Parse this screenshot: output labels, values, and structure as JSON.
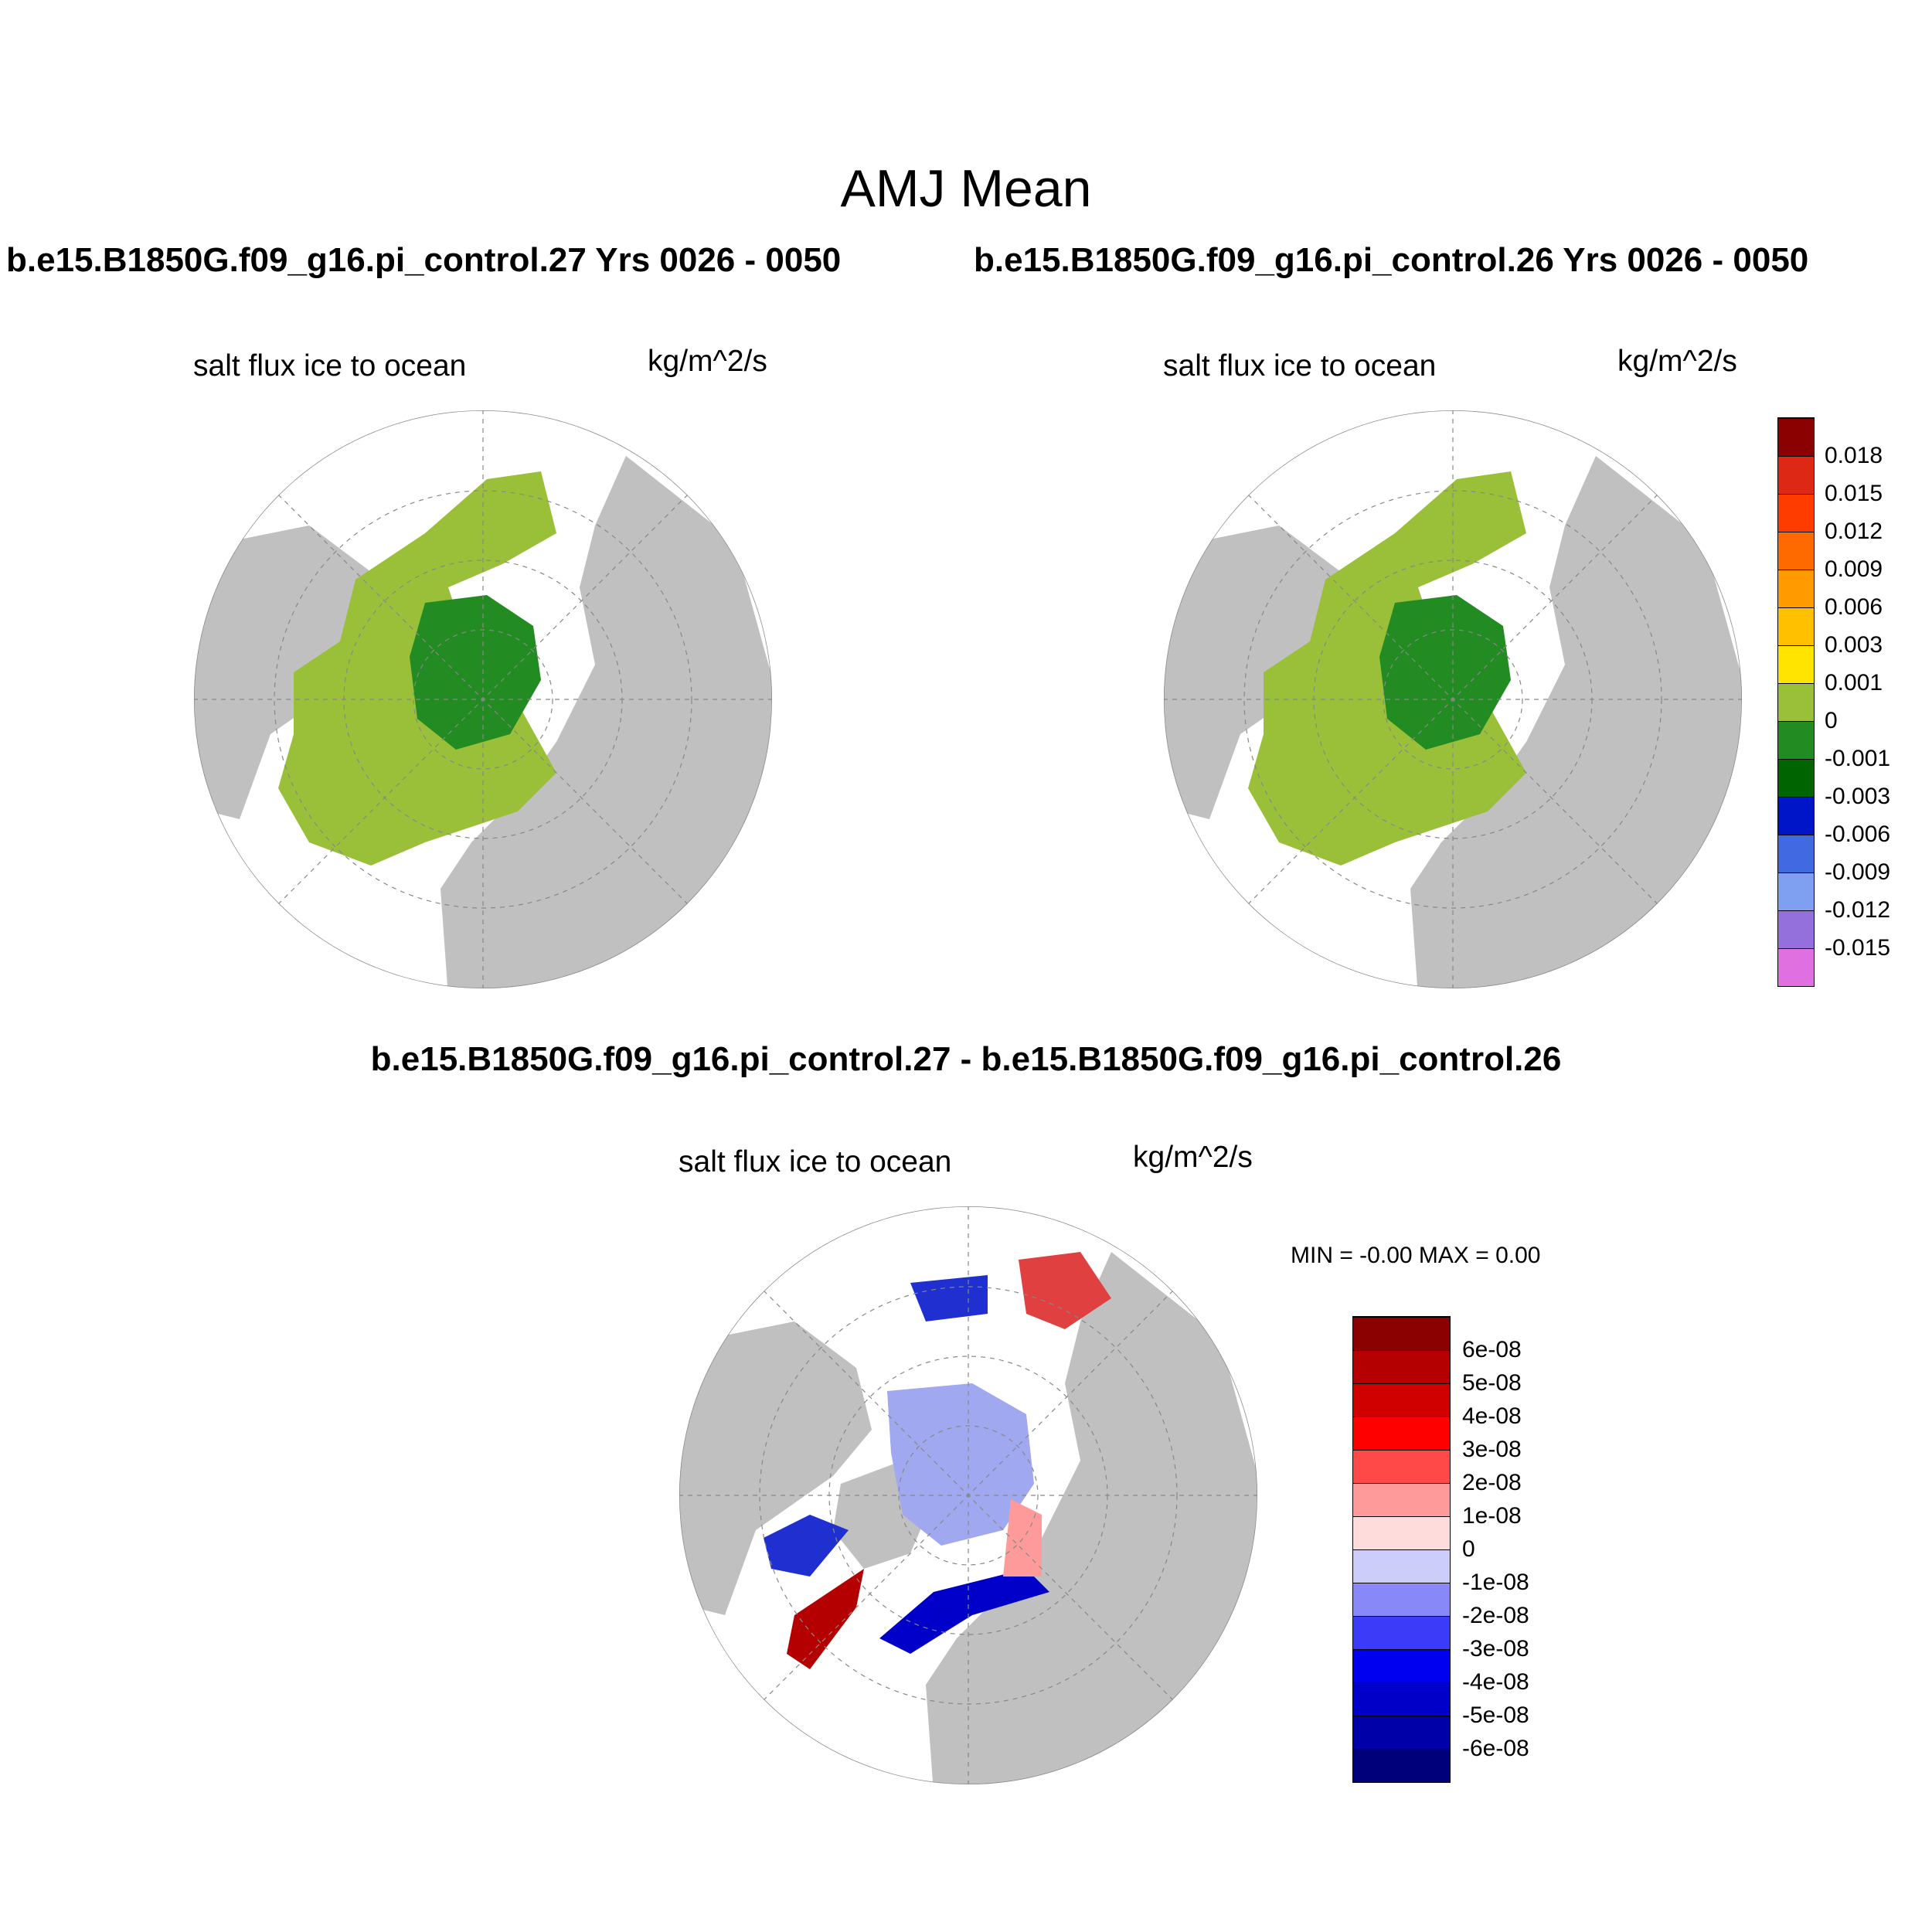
{
  "figure": {
    "title": "AMJ Mean",
    "case_left": "b.e15.B1850G.f09_g16.pi_control.27  Yrs 0026 - 0050",
    "case_right": "b.e15.B1850G.f09_g16.pi_control.26  Yrs 0026 - 0050",
    "diff_title": "b.e15.B1850G.f09_g16.pi_control.27 - b.e15.B1850G.f09_g16.pi_control.26"
  },
  "panels": [
    {
      "variable": "salt flux ice to ocean",
      "units": "kg/m^2/s"
    },
    {
      "variable": "salt flux ice to ocean",
      "units": "kg/m^2/s"
    },
    {
      "variable": "salt flux ice to ocean",
      "units": "kg/m^2/s",
      "min_max": "MIN =  -0.00 MAX =   0.00"
    }
  ],
  "colors": {
    "land": "#c0c0c0",
    "ocean": "#ffffff",
    "ice_near_zero": "#9ac03a",
    "ice_slightly_negative": "#228b22",
    "diff_positive": "#e04040",
    "diff_negative": "#2030d0",
    "diff_weak_negative": "#a0a8f0"
  },
  "colorbar_main": {
    "labels": [
      "0.018",
      "0.015",
      "0.012",
      "0.009",
      "0.006",
      "0.003",
      "0.001",
      "0",
      "-0.001",
      "-0.003",
      "-0.006",
      "-0.009",
      "-0.012",
      "-0.015"
    ],
    "colors": [
      "#8b0000",
      "#dc2814",
      "#ff3c00",
      "#ff6a00",
      "#ff9a00",
      "#ffc000",
      "#ffe400",
      "#9ac03a",
      "#228b22",
      "#006400",
      "#0014c8",
      "#4169e1",
      "#7f9ff0",
      "#9370db",
      "#e070e0"
    ]
  },
  "colorbar_diff": {
    "labels": [
      "6e-08",
      "5e-08",
      "4e-08",
      "3e-08",
      "2e-08",
      "1e-08",
      "0",
      "-1e-08",
      "-2e-08",
      "-3e-08",
      "-4e-08",
      "-5e-08",
      "-6e-08"
    ],
    "colors": [
      "#8b0000",
      "#b40000",
      "#d00000",
      "#ff0000",
      "#ff4848",
      "#ff9a9a",
      "#ffdcdc",
      "#cccdf8",
      "#8888f8",
      "#3c3cf8",
      "#0000f0",
      "#0000c8",
      "#0000a8",
      "#00007a"
    ]
  }
}
